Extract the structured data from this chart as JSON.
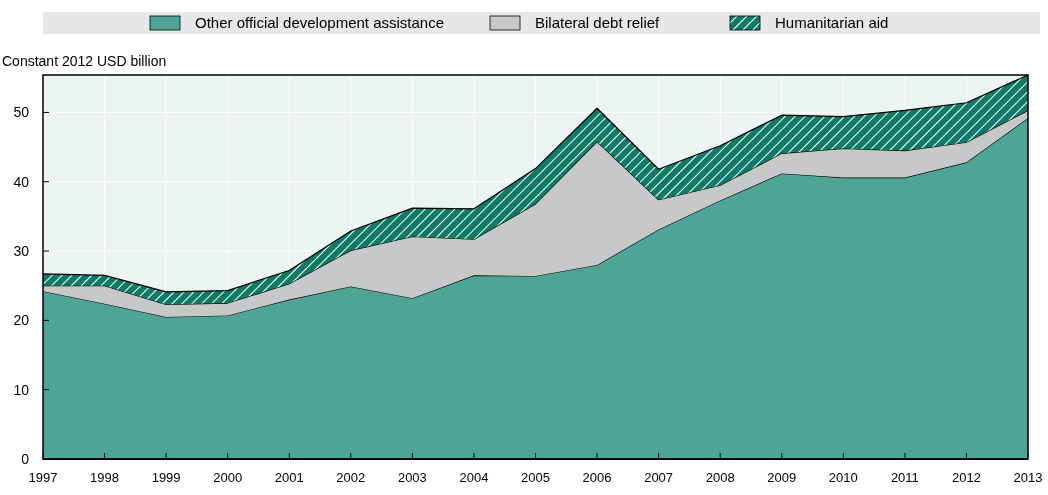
{
  "chart_data": {
    "type": "area",
    "stacked": true,
    "ylabel": "Constant 2012 USD billion",
    "x": [
      1997,
      1998,
      1999,
      2000,
      2001,
      2002,
      2003,
      2004,
      2005,
      2006,
      2007,
      2008,
      2009,
      2010,
      2011,
      2012,
      2013
    ],
    "xlim": [
      1997,
      2013
    ],
    "xticks": [
      1997,
      1998,
      1999,
      2000,
      2001,
      2002,
      2003,
      2004,
      2005,
      2006,
      2007,
      2008,
      2009,
      2010,
      2011,
      2012,
      2013
    ],
    "ylim": [
      0,
      55.4
    ],
    "yticks": [
      0,
      10,
      20,
      30,
      40,
      50
    ],
    "grid": true,
    "legend": "top",
    "series": [
      {
        "name": "Other official development assistance",
        "color": "#4ea595",
        "values": [
          24.2,
          22.4,
          20.5,
          20.7,
          23.0,
          24.9,
          23.2,
          26.5,
          26.4,
          28.0,
          33.1,
          37.3,
          41.2,
          40.6,
          40.6,
          42.8,
          49.2
        ]
      },
      {
        "name": "Bilateral debt relief",
        "color": "#c7c8ca",
        "values": [
          0.8,
          2.6,
          1.8,
          1.8,
          2.3,
          5.2,
          8.9,
          5.2,
          10.4,
          17.8,
          4.3,
          2.2,
          2.9,
          4.2,
          3.9,
          2.9,
          1.1
        ]
      },
      {
        "name": "Humanitarian aid",
        "color": "#0f7a66",
        "values": [
          1.7,
          1.5,
          1.8,
          1.8,
          1.9,
          2.8,
          4.1,
          4.4,
          5.1,
          4.8,
          4.4,
          5.7,
          5.5,
          4.6,
          5.8,
          5.7,
          5.1
        ]
      }
    ]
  }
}
